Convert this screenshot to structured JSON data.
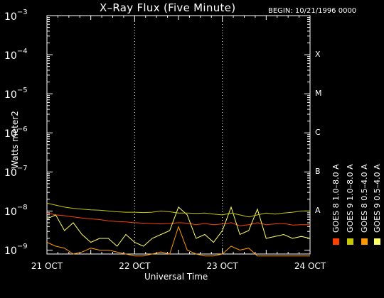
{
  "header": {
    "title": "X–Ray Flux (Five Minute)",
    "begin": "BEGIN: 10/21/1996 0000"
  },
  "chart_data": {
    "type": "line",
    "title": "X–Ray Flux (Five Minute)",
    "xlabel": "Universal Time",
    "ylabel": "Watts meter2",
    "x_tick_labels": [
      "21 OCT",
      "22 OCT",
      "23 OCT",
      "24 OCT"
    ],
    "y_tick_labels": [
      {
        "base": "10",
        "exp": "−3"
      },
      {
        "base": "10",
        "exp": "−4"
      },
      {
        "base": "10",
        "exp": "−5"
      },
      {
        "base": "10",
        "exp": "−6"
      },
      {
        "base": "10",
        "exp": "−7"
      },
      {
        "base": "10",
        "exp": "−8"
      },
      {
        "base": "10",
        "exp": "−9"
      }
    ],
    "flare_classes": [
      "X",
      "M",
      "C",
      "B",
      "A"
    ],
    "xlim_days": [
      0,
      3
    ],
    "ylim_log10": [
      -9.1,
      -3
    ],
    "log_scale": true,
    "grid": true,
    "series": [
      {
        "name": "GOES 8  1.0–8.0 A",
        "color": "#ff4000",
        "x": [
          0,
          0.1,
          0.2,
          0.3,
          0.4,
          0.5,
          0.6,
          0.7,
          0.8,
          0.9,
          1.0,
          1.1,
          1.2,
          1.3,
          1.4,
          1.5,
          1.6,
          1.7,
          1.8,
          1.9,
          2.0,
          2.1,
          2.2,
          2.3,
          2.4,
          2.5,
          2.6,
          2.7,
          2.8,
          2.9,
          3.0
        ],
        "y": [
          -8.05,
          -8.1,
          -8.12,
          -8.15,
          -8.18,
          -8.2,
          -8.22,
          -8.25,
          -8.27,
          -8.28,
          -8.3,
          -8.31,
          -8.32,
          -8.33,
          -8.32,
          -8.3,
          -8.31,
          -8.35,
          -8.32,
          -8.35,
          -8.33,
          -8.3,
          -8.38,
          -8.35,
          -8.3,
          -8.35,
          -8.33,
          -8.32,
          -8.36,
          -8.35,
          -8.35
        ]
      },
      {
        "name": "GOES 8  0.5–4.0 A",
        "color": "#ff9900",
        "x": [
          0,
          0.1,
          0.2,
          0.3,
          0.4,
          0.5,
          0.6,
          0.7,
          0.8,
          0.9,
          1.0,
          1.1,
          1.2,
          1.3,
          1.4,
          1.5,
          1.6,
          1.7,
          1.8,
          1.9,
          2.0,
          2.1,
          2.2,
          2.3,
          2.4,
          2.5,
          2.6,
          2.7,
          2.8,
          2.9,
          3.0
        ],
        "y": [
          -8.8,
          -8.9,
          -8.95,
          -9.1,
          -9.05,
          -8.95,
          -9.0,
          -9.0,
          -9.05,
          -9.1,
          -9.15,
          -9.15,
          -9.1,
          -9.05,
          -9.1,
          -8.4,
          -9.0,
          -9.1,
          -9.15,
          -9.15,
          -9.1,
          -8.9,
          -9.0,
          -8.95,
          -9.15,
          -9.15,
          -9.15,
          -9.15,
          -9.15,
          -9.15,
          -9.15
        ]
      },
      {
        "name": "GOES 9  0.5–4.0 A",
        "color": "#ffff66",
        "x": [
          0,
          0.1,
          0.2,
          0.3,
          0.4,
          0.5,
          0.6,
          0.7,
          0.8,
          0.9,
          1.0,
          1.1,
          1.2,
          1.3,
          1.4,
          1.5,
          1.6,
          1.7,
          1.8,
          1.9,
          2.0,
          2.1,
          2.2,
          2.3,
          2.4,
          2.5,
          2.6,
          2.7,
          2.8,
          2.9,
          3.0
        ],
        "y": [
          -8.2,
          -8.1,
          -8.5,
          -8.3,
          -8.6,
          -8.8,
          -8.7,
          -8.7,
          -8.9,
          -8.6,
          -8.8,
          -8.9,
          -8.7,
          -8.6,
          -8.5,
          -7.9,
          -8.1,
          -8.7,
          -8.6,
          -8.8,
          -8.5,
          -7.9,
          -8.6,
          -8.5,
          -7.95,
          -8.7,
          -8.65,
          -8.6,
          -8.7,
          -8.65,
          -8.7
        ]
      },
      {
        "name": "GOES 9  1.0–8.0 A",
        "color": "#c8c800",
        "x": [
          0,
          0.1,
          0.2,
          0.3,
          0.4,
          0.5,
          0.6,
          0.7,
          0.8,
          0.9,
          1.0,
          1.1,
          1.2,
          1.3,
          1.4,
          1.5,
          1.6,
          1.7,
          1.8,
          1.9,
          2.0,
          2.1,
          2.2,
          2.3,
          2.4,
          2.5,
          2.6,
          2.7,
          2.8,
          2.9,
          3.0
        ],
        "y": [
          -7.8,
          -7.85,
          -7.9,
          -7.93,
          -7.95,
          -7.97,
          -7.98,
          -8.0,
          -8.02,
          -8.03,
          -8.03,
          -8.04,
          -8.03,
          -8.0,
          -8.02,
          -8.05,
          -8.05,
          -8.06,
          -8.05,
          -8.08,
          -8.1,
          -8.05,
          -8.1,
          -8.15,
          -8.1,
          -8.05,
          -8.08,
          -8.05,
          -8.03,
          -8.0,
          -8.0
        ]
      }
    ]
  }
}
